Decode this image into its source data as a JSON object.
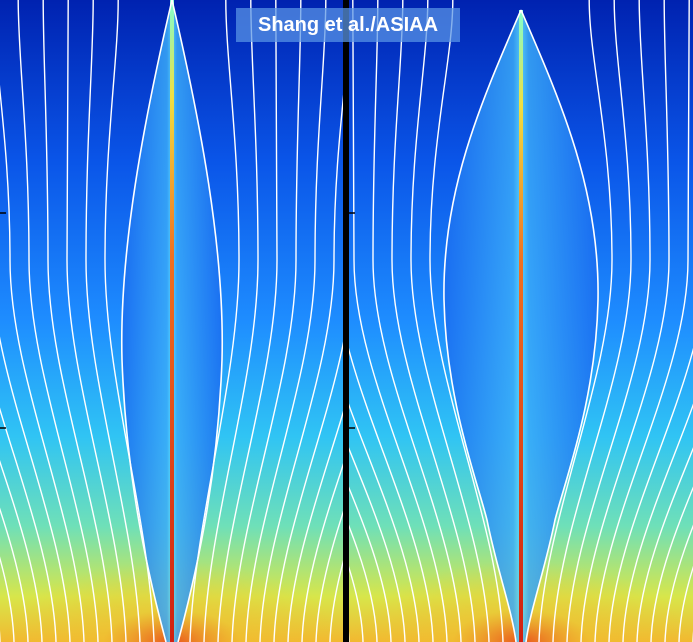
{
  "credit": "Shang et al./ASIAA"
}
